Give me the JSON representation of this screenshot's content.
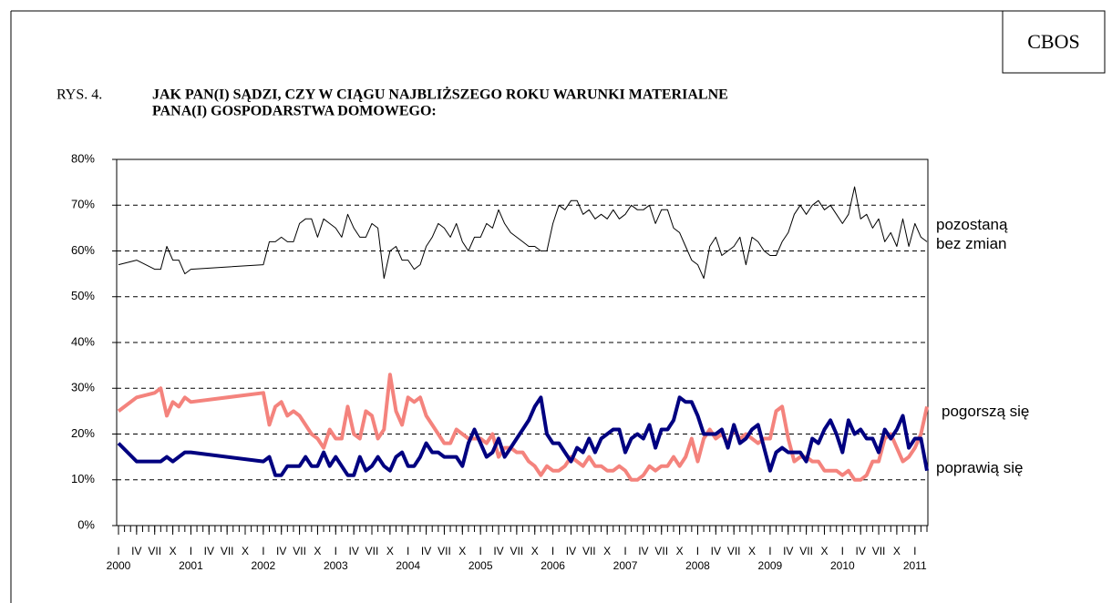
{
  "chart_data": {
    "type": "line",
    "badge": "CBOS",
    "figure_label": "RYS. 4.",
    "title_lines": [
      "JAK PAN(I) SĄDZI, CZY W CIĄGU NAJBLIŻSZEGO ROKU WARUNKI MATERIALNE",
      "PANA(I) GOSPODARSTWA DOMOWEGO:"
    ],
    "x": [
      "2000-01",
      "2000-04",
      "2000-07",
      "2000-08",
      "2000-09",
      "2000-10",
      "2000-11",
      "2000-12",
      "2001-01",
      "2002-01",
      "2002-02",
      "2002-03",
      "2002-04",
      "2002-05",
      "2002-06",
      "2002-07",
      "2002-08",
      "2002-09",
      "2002-10",
      "2002-11",
      "2002-12",
      "2003-01",
      "2003-02",
      "2003-03",
      "2003-04",
      "2003-05",
      "2003-06",
      "2003-07",
      "2003-08",
      "2003-09",
      "2003-10",
      "2003-11",
      "2003-12",
      "2004-01",
      "2004-02",
      "2004-03",
      "2004-04",
      "2004-05",
      "2004-06",
      "2004-07",
      "2004-08",
      "2004-09",
      "2004-10",
      "2004-11",
      "2004-12",
      "2005-01",
      "2005-02",
      "2005-03",
      "2005-04",
      "2005-05",
      "2005-06",
      "2005-07",
      "2005-08",
      "2005-09",
      "2005-10",
      "2005-11",
      "2005-12",
      "2006-01",
      "2006-02",
      "2006-03",
      "2006-04",
      "2006-05",
      "2006-06",
      "2006-07",
      "2006-08",
      "2006-09",
      "2006-10",
      "2006-11",
      "2006-12",
      "2007-01",
      "2007-02",
      "2007-03",
      "2007-04",
      "2007-05",
      "2007-06",
      "2007-07",
      "2007-08",
      "2007-09",
      "2007-10",
      "2007-11",
      "2007-12",
      "2008-01",
      "2008-02",
      "2008-03",
      "2008-04",
      "2008-05",
      "2008-06",
      "2008-07",
      "2008-08",
      "2008-09",
      "2008-10",
      "2008-11",
      "2008-12",
      "2009-01",
      "2009-02",
      "2009-03",
      "2009-04",
      "2009-05",
      "2009-06",
      "2009-07",
      "2009-08",
      "2009-09",
      "2009-10",
      "2009-11",
      "2009-12",
      "2010-01",
      "2010-02",
      "2010-03",
      "2010-04",
      "2010-05",
      "2010-06",
      "2010-07",
      "2010-08",
      "2010-09",
      "2010-10",
      "2010-11",
      "2010-12",
      "2011-01",
      "2011-02",
      "2011-03"
    ],
    "series": [
      {
        "name": "pozostaną bez zmian",
        "color": "#000000",
        "width": 1,
        "values": [
          57,
          58,
          56,
          56,
          61,
          58,
          58,
          55,
          56,
          57,
          62,
          62,
          63,
          62,
          62,
          66,
          67,
          67,
          63,
          67,
          66,
          65,
          63,
          68,
          65,
          63,
          63,
          66,
          65,
          54,
          60,
          61,
          58,
          58,
          56,
          57,
          61,
          63,
          66,
          65,
          63,
          66,
          62,
          60,
          63,
          63,
          66,
          65,
          69,
          66,
          64,
          63,
          62,
          61,
          61,
          60,
          60,
          66,
          70,
          69,
          71,
          71,
          68,
          69,
          67,
          68,
          67,
          69,
          67,
          68,
          70,
          69,
          69,
          70,
          66,
          69,
          69,
          65,
          64,
          61,
          58,
          57,
          54,
          61,
          63,
          59,
          60,
          61,
          63,
          57,
          63,
          62,
          60,
          59,
          59,
          62,
          64,
          68,
          70,
          68,
          70,
          71,
          69,
          70,
          68,
          66,
          68,
          74,
          67,
          68,
          65,
          67,
          62,
          64,
          61,
          67,
          61,
          66,
          63,
          62
        ]
      },
      {
        "name": "pogorszą się",
        "color": "#f4837d",
        "width": 4,
        "values": [
          25,
          28,
          29,
          30,
          24,
          27,
          26,
          28,
          27,
          29,
          22,
          26,
          27,
          24,
          25,
          24,
          22,
          20,
          19,
          17,
          21,
          19,
          19,
          26,
          20,
          19,
          25,
          24,
          19,
          21,
          33,
          25,
          22,
          28,
          27,
          28,
          24,
          22,
          20,
          18,
          18,
          21,
          20,
          19,
          19,
          19,
          18,
          20,
          15,
          17,
          17,
          16,
          16,
          14,
          13,
          11,
          13,
          12,
          12,
          13,
          15,
          14,
          13,
          15,
          13,
          13,
          12,
          12,
          13,
          12,
          10,
          10,
          11,
          13,
          12,
          13,
          13,
          15,
          13,
          15,
          19,
          14,
          19,
          21,
          19,
          20,
          18,
          21,
          19,
          20,
          19,
          18,
          19,
          19,
          25,
          26,
          19,
          14,
          15,
          15,
          14,
          14,
          12,
          12,
          12,
          11,
          12,
          10,
          10,
          11,
          14,
          14,
          19,
          20,
          17,
          14,
          15,
          17,
          20,
          26
        ]
      },
      {
        "name": "poprawią się",
        "color": "#000080",
        "width": 4,
        "values": [
          18,
          14,
          14,
          14,
          15,
          14,
          15,
          16,
          16,
          14,
          15,
          11,
          11,
          13,
          13,
          13,
          15,
          13,
          13,
          16,
          13,
          15,
          13,
          11,
          11,
          15,
          12,
          13,
          15,
          13,
          12,
          15,
          16,
          13,
          13,
          15,
          18,
          16,
          16,
          15,
          15,
          15,
          13,
          18,
          21,
          18,
          15,
          16,
          19,
          15,
          17,
          19,
          21,
          23,
          26,
          28,
          20,
          18,
          18,
          16,
          14,
          17,
          16,
          19,
          16,
          19,
          20,
          21,
          21,
          16,
          19,
          20,
          19,
          22,
          17,
          21,
          21,
          23,
          28,
          27,
          27,
          24,
          20,
          20,
          20,
          21,
          17,
          22,
          18,
          19,
          21,
          22,
          17,
          12,
          16,
          17,
          16,
          16,
          16,
          14,
          19,
          18,
          21,
          23,
          20,
          16,
          23,
          20,
          21,
          19,
          19,
          16,
          21,
          19,
          21,
          24,
          17,
          19,
          19,
          12
        ]
      }
    ],
    "xlim": [
      "2000-01",
      "2011-03"
    ],
    "xticks": [
      {
        "value": "2000-01",
        "label": "I"
      },
      {
        "value": "2000-04",
        "label": "IV"
      },
      {
        "value": "2000-07",
        "label": "VII"
      },
      {
        "value": "2000-10",
        "label": "X"
      },
      {
        "value": "2001-01",
        "label": "I"
      },
      {
        "value": "2001-04",
        "label": "IV"
      },
      {
        "value": "2001-07",
        "label": "VII"
      },
      {
        "value": "2001-10",
        "label": "X"
      },
      {
        "value": "2002-01",
        "label": "I"
      },
      {
        "value": "2002-04",
        "label": "IV"
      },
      {
        "value": "2002-07",
        "label": "VII"
      },
      {
        "value": "2002-10",
        "label": "X"
      },
      {
        "value": "2003-01",
        "label": "I"
      },
      {
        "value": "2003-04",
        "label": "IV"
      },
      {
        "value": "2003-07",
        "label": "VII"
      },
      {
        "value": "2003-10",
        "label": "X"
      },
      {
        "value": "2004-01",
        "label": "I"
      },
      {
        "value": "2004-04",
        "label": "IV"
      },
      {
        "value": "2004-07",
        "label": "VII"
      },
      {
        "value": "2004-10",
        "label": "X"
      },
      {
        "value": "2005-01",
        "label": "I"
      },
      {
        "value": "2005-04",
        "label": "IV"
      },
      {
        "value": "2005-07",
        "label": "VII"
      },
      {
        "value": "2005-10",
        "label": "X"
      },
      {
        "value": "2006-01",
        "label": "I"
      },
      {
        "value": "2006-04",
        "label": "IV"
      },
      {
        "value": "2006-07",
        "label": "VII"
      },
      {
        "value": "2006-10",
        "label": "X"
      },
      {
        "value": "2007-01",
        "label": "I"
      },
      {
        "value": "2007-04",
        "label": "IV"
      },
      {
        "value": "2007-07",
        "label": "VII"
      },
      {
        "value": "2007-10",
        "label": "X"
      },
      {
        "value": "2008-01",
        "label": "I"
      },
      {
        "value": "2008-04",
        "label": "IV"
      },
      {
        "value": "2008-07",
        "label": "VII"
      },
      {
        "value": "2008-10",
        "label": "X"
      },
      {
        "value": "2009-01",
        "label": "I"
      },
      {
        "value": "2009-04",
        "label": "IV"
      },
      {
        "value": "2009-07",
        "label": "VII"
      },
      {
        "value": "2009-10",
        "label": "X"
      },
      {
        "value": "2010-01",
        "label": "I"
      },
      {
        "value": "2010-04",
        "label": "IV"
      },
      {
        "value": "2010-07",
        "label": "VII"
      },
      {
        "value": "2010-10",
        "label": "X"
      },
      {
        "value": "2011-01",
        "label": "I"
      }
    ],
    "year_labels": [
      {
        "value": "2000-01",
        "label": "2000"
      },
      {
        "value": "2001-01",
        "label": "2001"
      },
      {
        "value": "2002-01",
        "label": "2002"
      },
      {
        "value": "2003-01",
        "label": "2003"
      },
      {
        "value": "2004-01",
        "label": "2004"
      },
      {
        "value": "2005-01",
        "label": "2005"
      },
      {
        "value": "2006-01",
        "label": "2006"
      },
      {
        "value": "2007-01",
        "label": "2007"
      },
      {
        "value": "2008-01",
        "label": "2008"
      },
      {
        "value": "2009-01",
        "label": "2009"
      },
      {
        "value": "2010-01",
        "label": "2010"
      },
      {
        "value": "2011-01",
        "label": "2011"
      }
    ],
    "ylim": [
      0,
      80
    ],
    "yticks": [
      {
        "value": 0,
        "label": "0%"
      },
      {
        "value": 10,
        "label": "10%"
      },
      {
        "value": 20,
        "label": "20%"
      },
      {
        "value": 30,
        "label": "30%"
      },
      {
        "value": 40,
        "label": "40%"
      },
      {
        "value": 50,
        "label": "50%"
      },
      {
        "value": 60,
        "label": "60%"
      },
      {
        "value": 70,
        "label": "70%"
      },
      {
        "value": 80,
        "label": "80%"
      }
    ],
    "grid": true
  }
}
